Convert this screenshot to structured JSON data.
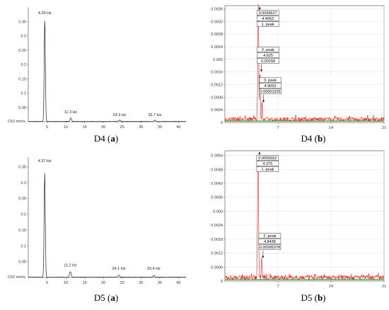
{
  "panels": [
    {
      "id": "d4a",
      "type": "line",
      "caption": "D4 (a)",
      "ylabel": "Ch2 mm/s",
      "xlim": [
        0,
        42
      ],
      "ylim": [
        0,
        0.4
      ],
      "xticks": [
        5,
        10,
        15,
        20,
        25,
        30,
        35,
        40
      ],
      "yticks": [
        0.05,
        0.1,
        0.15,
        0.2,
        0.25,
        0.3,
        0.35
      ],
      "ytick_labels": [
        "0.05",
        "0.1",
        "0.15",
        "0.2",
        "0.25",
        "0.3",
        "0.35"
      ],
      "peak_labels": [
        {
          "text": "4.39 Hz",
          "x": 4.39,
          "y": 0.37
        },
        {
          "text": "11.3 Hz",
          "x": 11.3,
          "y": 0.025
        },
        {
          "text": "24.3 Hz",
          "x": 24.3,
          "y": 0.015
        },
        {
          "text": "33.7 Hz",
          "x": 33.7,
          "y": 0.015
        }
      ],
      "series": [
        {
          "peaks": [
            [
              4.39,
              0.355
            ],
            [
              11.3,
              0.012
            ],
            [
              24.3,
              0.005
            ],
            [
              33.7,
              0.004
            ]
          ],
          "color": "#222222"
        }
      ]
    },
    {
      "id": "d4b",
      "type": "line",
      "caption": "D4 (b)",
      "xlim": [
        0,
        21
      ],
      "ylim": [
        0,
        0.0037
      ],
      "xticks": [
        7,
        14,
        21
      ],
      "yticks": [
        0.0004,
        0.0008,
        0.0012,
        0.0016,
        0.002,
        0.0024,
        0.0028,
        0.0032,
        0.0036
      ],
      "ytick_labels": [
        "0.0004",
        "0.0008",
        "0.0012",
        "0.0016",
        "0.002",
        "0.0024",
        "0.0028",
        "0.0032",
        "0.0036"
      ],
      "baseline_color": "#22aa22",
      "series": [
        {
          "peaks": [
            [
              4.4063,
              0.0036627
            ],
            [
              4.625,
              0.00158
            ],
            [
              4.9063,
              0.00061026
            ]
          ],
          "color": "#ff0000"
        }
      ],
      "annotations": [
        {
          "lines": [
            "0.0036627",
            "4.4063",
            "1. peak"
          ],
          "x": 4.4063,
          "y": 0.0036627
        },
        {
          "lines": [
            "2. peak",
            "4.625",
            "0.00158"
          ],
          "x": 4.625,
          "y": 0.00158
        },
        {
          "lines": [
            "3. peak",
            "4.9063",
            "0.00061026"
          ],
          "x": 4.9063,
          "y": 0.00061026
        }
      ]
    },
    {
      "id": "d5a",
      "type": "line",
      "caption": "D5 (a)",
      "ylabel": "Ch2 mm/s",
      "xlim": [
        0,
        42
      ],
      "ylim": [
        0,
        0.38
      ],
      "xticks": [
        5,
        10,
        15,
        20,
        25,
        30,
        35,
        40
      ],
      "yticks": [
        0.05,
        0.1,
        0.15,
        0.2,
        0.25,
        0.3,
        0.35
      ],
      "ytick_labels": [
        "0.05",
        "0.1",
        "0.15",
        "0.2",
        "0.25",
        "0.3",
        "0.35"
      ],
      "peak_labels": [
        {
          "text": "4.37 Hz",
          "x": 4.37,
          "y": 0.36
        },
        {
          "text": "11.2 Hz",
          "x": 11.2,
          "y": 0.03
        },
        {
          "text": "24.1 Hz",
          "x": 24.1,
          "y": 0.02
        },
        {
          "text": "33.4 Hz",
          "x": 33.4,
          "y": 0.02
        }
      ],
      "series": [
        {
          "peaks": [
            [
              4.37,
              0.33
            ],
            [
              11.2,
              0.018
            ],
            [
              24.1,
              0.006
            ],
            [
              33.4,
              0.005
            ]
          ],
          "color": "#222222"
        }
      ]
    },
    {
      "id": "d5b",
      "type": "line",
      "caption": "D5 (b)",
      "xlim": [
        0,
        21
      ],
      "ylim": [
        0,
        0.0056
      ],
      "xticks": [
        7,
        14,
        21
      ],
      "yticks": [
        0.0006,
        0.0012,
        0.0018,
        0.0024,
        0.003,
        0.0036,
        0.0042,
        0.0048,
        0.0054
      ],
      "ytick_labels": [
        "0.0006",
        "0.0012",
        "0.0018",
        "0.0024",
        "0.003",
        "0.0036",
        "0.0042",
        "0.0048",
        "0.0054"
      ],
      "baseline_color": "#22aa22",
      "series": [
        {
          "peaks": [
            [
              4.375,
              0.0055552
            ],
            [
              4.8438,
              0.00095378
            ]
          ],
          "color": "#ff0000"
        }
      ],
      "annotations": [
        {
          "lines": [
            "0.0055552",
            "4.375",
            "1. peak"
          ],
          "x": 4.375,
          "y": 0.0055552
        },
        {
          "lines": [
            "2. peak",
            "4.8438",
            "0.00095378"
          ],
          "x": 4.8438,
          "y": 0.00095378
        }
      ]
    }
  ]
}
